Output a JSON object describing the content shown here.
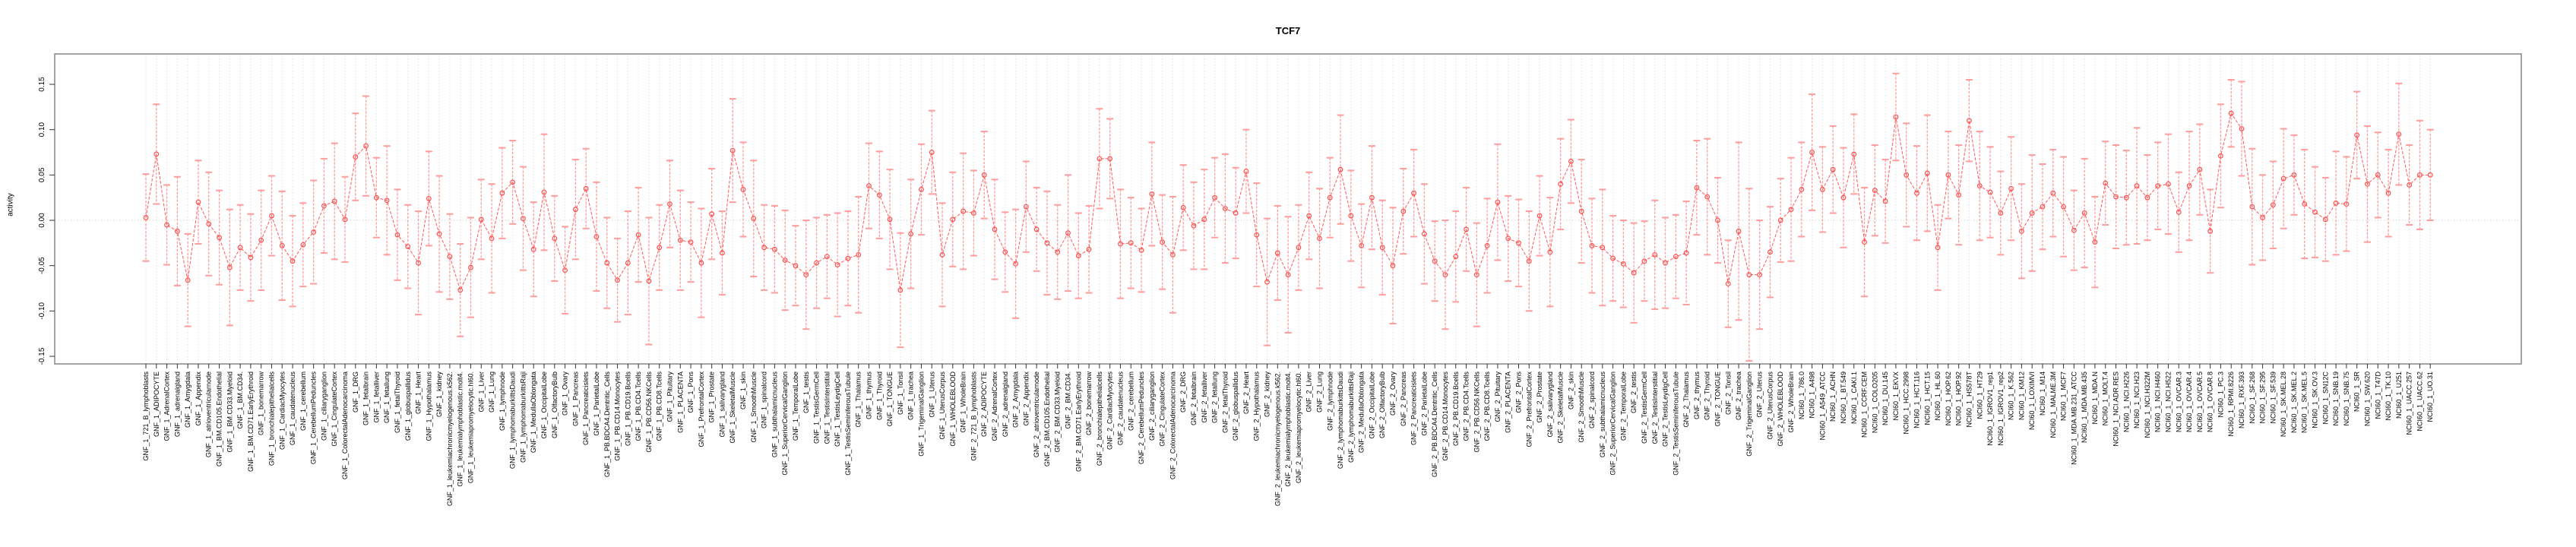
{
  "window": {
    "background": "#ffffff"
  },
  "chart_data": {
    "type": "line",
    "title": "TCF7",
    "ylabel": "activity",
    "xlabel": "",
    "legend": "none",
    "grid": "vertical dotted line per sample; horizontal dotted line at y=0",
    "ylim": [
      -0.17,
      0.185
    ],
    "yticks": [
      0.15,
      0.1,
      0.05,
      0.0,
      -0.05,
      -0.1,
      -0.15
    ],
    "ytick_labels": [
      "0.15",
      "0.10",
      "0.05",
      "0.00",
      "-0.05",
      "-0.10",
      "-0.15"
    ],
    "marker": "open-circle",
    "error_bars": "confidence interval with caps",
    "colors": {
      "series": "#ff5a5a",
      "marker": "#ff4d4d",
      "error_bar": "#ff9c9c",
      "gridline": "#d9d9d9",
      "zero_line": "#c8c8c8",
      "box": "#858585",
      "tick": "#333333",
      "text": "#000000"
    },
    "sample_groups": [
      {
        "prefix": "GNF_1_",
        "count": 79
      },
      {
        "prefix": "GNF_2_",
        "count": 79
      },
      {
        "prefix": "NCI60_1_",
        "count": 61
      }
    ],
    "categories": [
      "GNF_1_721_B_lymphoblasts",
      "GNF_1_ADIPOCYTE",
      "GNF_1_AdrenalCortex",
      "GNF_1_adrenalgland",
      "GNF_1_Amygdala",
      "GNF_1_Appendix",
      "GNF_1_atrioventricularnode",
      "GNF_1_BM.CD105.Endothelial",
      "GNF_1_BM.CD33.Myeloid",
      "GNF_1_BM.CD34.",
      "GNF_1_BM.CD71.EarlyErythroid",
      "GNF_1_bonemarrow",
      "GNF_1_bronchialepithelialcells",
      "GNF_1_CardiacMyocytes",
      "GNF_1_caudatenucleus",
      "GNF_1_cerebellum",
      "GNF_1_CerebellumPeduncles",
      "GNF_1_ciliaryganglion",
      "GNF_1_CingulateCortex",
      "GNF_1_ColorectalAdenocarcinoma",
      "GNF_1_DRG",
      "GNF_1_fetalbrain",
      "GNF_1_fetalliver",
      "GNF_1_fetallung",
      "GNF_1_fetalThyroid",
      "GNF_1_globuspallidus",
      "GNF_1_Heart",
      "GNF_1_Hypothalamus",
      "GNF_1_kidney",
      "GNF_1_leukemiachronicmyelogenous.k562.",
      "GNF_1_leukemialymphoblastic.molt4.",
      "GNF_1_leukemiapromyelocytic.hl60.",
      "GNF_1_Liver",
      "GNF_1_Lung",
      "GNF_1_lymphnode",
      "GNF_1_lymphomaburkittsDaudi",
      "GNF_1_lymphomaburkittsRaji",
      "GNF_1_MedullaOblongata",
      "GNF_1_OccipitalLobe",
      "GNF_1_OlfactoryBulb",
      "GNF_1_Ovary",
      "GNF_1_Pancreas",
      "GNF_1_Pancreaticislets",
      "GNF_1_ParietalLobe",
      "GNF_1_PB.BDCA4.Dentritic_Cells",
      "GNF_1_PB.CD14.Monocytes",
      "GNF_1_PB.CD19.Bcells",
      "GNF_1_PB.CD4.Tcells",
      "GNF_1_PB.CD56.NKCells",
      "GNF_1_PB.CD8.Tcells",
      "GNF_1_Pituitary",
      "GNF_1_PLACENTA",
      "GNF_1_Pons",
      "GNF_1_PrefrontalCortex",
      "GNF_1_Prostate",
      "GNF_1_salivarygland",
      "GNF_1_SkeletalMuscle",
      "GNF_1_skin",
      "GNF_1_SmoothMuscle",
      "GNF_1_spinalcord",
      "GNF_1_subthalamicnucleus",
      "GNF_1_SuperiorCervicalGanglion",
      "GNF_1_TemporalLobe",
      "GNF_1_testis",
      "GNF_1_TestisGermCell",
      "GNF_1_TestisInterstitial",
      "GNF_1_TestisLeydigCell",
      "GNF_1_TestisSeminiferousTubule",
      "GNF_1_Thalamus",
      "GNF_1_thymus",
      "GNF_1_Thyroid",
      "GNF_1_TONGUE",
      "GNF_1_Tonsil",
      "GNF_1_trachea",
      "GNF_1_TrigeminalGanglion",
      "GNF_1_Uterus",
      "GNF_1_UterusCorpus",
      "GNF_1_WHOLEBLOOD",
      "GNF_1_WholeBrain",
      "GNF_2_721_B_lymphoblasts",
      "GNF_2_ADIPOCYTE",
      "GNF_2_AdrenalCortex",
      "GNF_2_adrenalgland",
      "GNF_2_Amygdala",
      "GNF_2_Appendix",
      "GNF_2_atrioventricularnode",
      "GNF_2_BM.CD105.Endothelial",
      "GNF_2_BM.CD33.Myeloid",
      "GNF_2_BM.CD34.",
      "GNF_2_BM.CD71.EarlyErythroid",
      "GNF_2_bonemarrow",
      "GNF_2_bronchialepithelialcells",
      "GNF_2_CardiacMyocytes",
      "GNF_2_caudatenucleus",
      "GNF_2_cerebellum",
      "GNF_2_CerebellumPeduncles",
      "GNF_2_ciliaryganglion",
      "GNF_2_CingulateCortex",
      "GNF_2_ColorectalAdenocarcinoma",
      "GNF_2_DRG",
      "GNF_2_fetalbrain",
      "GNF_2_fetalliver",
      "GNF_2_fetallung",
      "GNF_2_fetalThyroid",
      "GNF_2_globuspallidus",
      "GNF_2_Heart",
      "GNF_2_Hypothalamus",
      "GNF_2_kidney",
      "GNF_2_leukemiachronicmyelogenous.k562.",
      "GNF_2_leukemialymphoblastic.molt4.",
      "GNF_2_leukemiapromyelocytic.hl60.",
      "GNF_2_Liver",
      "GNF_2_Lung",
      "GNF_2_lymphnode",
      "GNF_2_lymphomaburkittsDaudi",
      "GNF_2_lymphomaburkittsRaji",
      "GNF_2_MedullaOblongata",
      "GNF_2_OccipitalLobe",
      "GNF_2_OlfactoryBulb",
      "GNF_2_Ovary",
      "GNF_2_Pancreas",
      "GNF_2_Pancreaticislets",
      "GNF_2_ParietalLobe",
      "GNF_2_PB.BDCA4.Dentritic_Cells",
      "GNF_2_PB.CD14.Monocytes",
      "GNF_2_PB.CD19.Bcells",
      "GNF_2_PB.CD4.Tcells",
      "GNF_2_PB.CD56.NKCells",
      "GNF_2_PB.CD8.Tcells",
      "GNF_2_Pituitary",
      "GNF_2_PLACENTA",
      "GNF_2_Pons",
      "GNF_2_PrefrontalCortex",
      "GNF_2_Prostate",
      "GNF_2_salivarygland",
      "GNF_2_SkeletalMuscle",
      "GNF_2_skin",
      "GNF_2_SmoothMuscle",
      "GNF_2_spinalcord",
      "GNF_2_subthalamicnucleus",
      "GNF_2_SuperiorCervicalGanglion",
      "GNF_2_TemporalLobe",
      "GNF_2_testis",
      "GNF_2_TestisGermCell",
      "GNF_2_TestisInterstitial",
      "GNF_2_TestisLeydigCell",
      "GNF_2_TestisSeminiferousTubule",
      "GNF_2_Thalamus",
      "GNF_2_thymus",
      "GNF_2_Thyroid",
      "GNF_2_TONGUE",
      "GNF_2_Tonsil",
      "GNF_2_trachea",
      "GNF_2_TrigeminalGanglion",
      "GNF_2_Uterus",
      "GNF_2_UterusCorpus",
      "GNF_2_WHOLEBLOOD",
      "GNF_2_WholeBrain",
      "NCI60_1_786.0",
      "NCI60_1_A498",
      "NCI60_1_A549_ATCC",
      "NCI60_1_ACHN",
      "NCI60_1_BT.549",
      "NCI60_1_CAKI.1",
      "NCI60_1_CCRF.CEM",
      "NCI60_1_COLO205",
      "NCI60_1_DU.145",
      "NCI60_1_EKVX",
      "NCI60_1_HCC.2998",
      "NCI60_1_HCT.116",
      "NCI60_1_HCT.15",
      "NCI60_1_HL.60",
      "NCI60_1_HOP.62",
      "NCI60_1_HOP.92",
      "NCI60_1_HS578T",
      "NCI60_1_HT29",
      "NCI60_1_IGROV1_rep1",
      "NCI60_1_IGROV1_rep2",
      "NCI60_1_K.562",
      "NCI60_1_KM12",
      "NCI60_1_LOXIMVI",
      "NCI60_1_M14",
      "NCI60_1_MALME.3M",
      "NCI60_1_MCF7",
      "NCI60_1_MDA.MB.231_ATCC",
      "NCI60_1_MDA.MB.435",
      "NCI60_1_MDA.N",
      "NCI60_1_MOLT.4",
      "NCI60_1_NCI.ADR.RES",
      "NCI60_1_NCI.H226",
      "NCI60_1_NCI.H23",
      "NCI60_1_NCI.H322M",
      "NCI60_1_NCI.H460",
      "NCI60_1_NCI.H522",
      "NCI60_1_OVCAR.3",
      "NCI60_1_OVCAR.4",
      "NCI60_1_OVCAR.5",
      "NCI60_1_OVCAR.8",
      "NCI60_1_PC.3",
      "NCI60_1_RPMI.8226",
      "NCI60_1_RXF.393",
      "NCI60_1_SF.268",
      "NCI60_1_SF.295",
      "NCI60_1_SF.539",
      "NCI60_1_SK.MEL.28",
      "NCI60_1_SK.MEL.2",
      "NCI60_1_SK.MEL.5",
      "NCI60_1_SK.OV.3",
      "NCI60_1_SN12C",
      "NCI60_1_SNB.19",
      "NCI60_1_SNB.75",
      "NCI60_1_SR",
      "NCI60_1_SW.620",
      "NCI60_1_T47D",
      "NCI60_1_TK.10",
      "NCI60_1_U251",
      "NCI60_1_UACC.257",
      "NCI60_1_UACC.62",
      "NCI60_1_UO.31"
    ],
    "values": [
      0.003,
      0.073,
      -0.005,
      -0.012,
      -0.066,
      0.02,
      -0.004,
      -0.019,
      -0.052,
      -0.03,
      -0.041,
      -0.022,
      0.005,
      -0.028,
      -0.045,
      -0.027,
      -0.013,
      0.016,
      0.021,
      0.001,
      0.07,
      0.082,
      0.025,
      0.022,
      -0.016,
      -0.029,
      -0.047,
      0.024,
      -0.015,
      -0.04,
      -0.077,
      -0.052,
      0.001,
      -0.02,
      0.03,
      0.042,
      0.002,
      -0.032,
      0.031,
      -0.02,
      -0.055,
      0.012,
      0.035,
      -0.018,
      -0.047,
      -0.066,
      -0.047,
      -0.016,
      -0.067,
      -0.03,
      0.018,
      -0.022,
      -0.024,
      -0.047,
      0.007,
      -0.036,
      0.077,
      0.034,
      0.002,
      -0.03,
      -0.032,
      -0.044,
      -0.05,
      -0.06,
      -0.047,
      -0.04,
      -0.049,
      -0.042,
      -0.038,
      0.038,
      0.028,
      0.001,
      -0.077,
      -0.015,
      0.034,
      0.075,
      -0.038,
      0.001,
      0.01,
      0.008,
      0.05,
      -0.01,
      -0.035,
      -0.048,
      0.015,
      -0.01,
      -0.025,
      -0.035,
      -0.014,
      -0.039,
      -0.032,
      0.068,
      0.068,
      -0.026,
      -0.025,
      -0.033,
      0.029,
      -0.024,
      -0.038,
      0.014,
      -0.006,
      0.001,
      0.025,
      0.013,
      0.008,
      0.054,
      -0.016,
      -0.068,
      -0.036,
      -0.06,
      -0.03,
      0.005,
      -0.02,
      0.025,
      0.056,
      0.005,
      -0.028,
      0.025,
      -0.03,
      -0.05,
      0.01,
      0.03,
      -0.015,
      -0.045,
      -0.06,
      -0.04,
      -0.01,
      -0.06,
      -0.028,
      0.02,
      -0.02,
      -0.025,
      -0.045,
      0.005,
      -0.035,
      0.04,
      0.065,
      0.01,
      -0.028,
      -0.03,
      -0.042,
      -0.048,
      -0.058,
      -0.045,
      -0.038,
      -0.047,
      -0.04,
      -0.036,
      0.036,
      0.026,
      0.0,
      -0.07,
      -0.012,
      -0.06,
      -0.06,
      -0.035,
      0.0,
      0.012,
      0.034,
      0.075,
      0.034,
      0.056,
      0.025,
      0.073,
      -0.024,
      0.033,
      0.021,
      0.114,
      0.05,
      0.03,
      0.052,
      -0.03,
      0.05,
      0.028,
      0.11,
      0.038,
      0.031,
      0.008,
      0.035,
      -0.012,
      0.008,
      0.015,
      0.03,
      0.015,
      -0.011,
      0.008,
      -0.024,
      0.041,
      0.026,
      0.025,
      0.038,
      0.025,
      0.038,
      0.04,
      0.009,
      0.038,
      0.056,
      -0.012,
      0.071,
      0.118,
      0.101,
      0.015,
      0.003,
      0.017,
      0.046,
      0.05,
      0.018,
      0.009,
      0.001,
      0.019,
      0.018,
      0.094,
      0.04,
      0.05,
      0.03,
      0.095,
      0.039,
      0.05,
      0.05
    ],
    "ci_half_width": [
      0.048,
      0.055,
      0.044,
      0.06,
      0.051,
      0.046,
      0.057,
      0.052,
      0.064,
      0.047,
      0.048,
      0.055,
      0.044,
      0.06,
      0.05,
      0.046,
      0.057,
      0.052,
      0.064,
      0.047,
      0.048,
      0.055,
      0.044,
      0.06,
      0.05,
      0.046,
      0.057,
      0.052,
      0.064,
      0.047,
      0.051,
      0.055,
      0.044,
      0.06,
      0.05,
      0.046,
      0.057,
      0.052,
      0.064,
      0.047,
      0.048,
      0.055,
      0.044,
      0.06,
      0.05,
      0.046,
      0.057,
      0.052,
      0.07,
      0.047,
      0.048,
      0.055,
      0.044,
      0.06,
      0.05,
      0.046,
      0.057,
      0.052,
      0.064,
      0.047,
      0.048,
      0.055,
      0.044,
      0.06,
      0.05,
      0.046,
      0.057,
      0.052,
      0.064,
      0.047,
      0.048,
      0.055,
      0.063,
      0.06,
      0.05,
      0.046,
      0.057,
      0.052,
      0.064,
      0.047,
      0.048,
      0.055,
      0.044,
      0.06,
      0.05,
      0.046,
      0.057,
      0.052,
      0.064,
      0.047,
      0.048,
      0.055,
      0.044,
      0.06,
      0.05,
      0.046,
      0.057,
      0.052,
      0.064,
      0.047,
      0.048,
      0.055,
      0.044,
      0.06,
      0.05,
      0.046,
      0.057,
      0.07,
      0.052,
      0.064,
      0.047,
      0.048,
      0.055,
      0.044,
      0.06,
      0.05,
      0.046,
      0.057,
      0.052,
      0.064,
      0.047,
      0.048,
      0.055,
      0.044,
      0.06,
      0.05,
      0.046,
      0.057,
      0.052,
      0.064,
      0.047,
      0.048,
      0.055,
      0.044,
      0.06,
      0.05,
      0.046,
      0.057,
      0.052,
      0.064,
      0.047,
      0.048,
      0.055,
      0.044,
      0.06,
      0.05,
      0.046,
      0.057,
      0.052,
      0.064,
      0.047,
      0.048,
      0.098,
      0.095,
      0.06,
      0.05,
      0.046,
      0.057,
      0.052,
      0.064,
      0.047,
      0.048,
      0.055,
      0.044,
      0.06,
      0.05,
      0.046,
      0.048,
      0.057,
      0.052,
      0.064,
      0.047,
      0.048,
      0.055,
      0.045,
      0.06,
      0.05,
      0.046,
      0.057,
      0.052,
      0.064,
      0.047,
      0.048,
      0.055,
      0.044,
      0.06,
      0.05,
      0.046,
      0.057,
      0.052,
      0.064,
      0.047,
      0.048,
      0.055,
      0.044,
      0.06,
      0.05,
      0.046,
      0.057,
      0.037,
      0.052,
      0.064,
      0.047,
      0.048,
      0.055,
      0.044,
      0.06,
      0.05,
      0.046,
      0.057,
      0.052,
      0.048,
      0.064,
      0.047,
      0.048,
      0.056,
      0.044,
      0.06,
      0.05
    ]
  }
}
